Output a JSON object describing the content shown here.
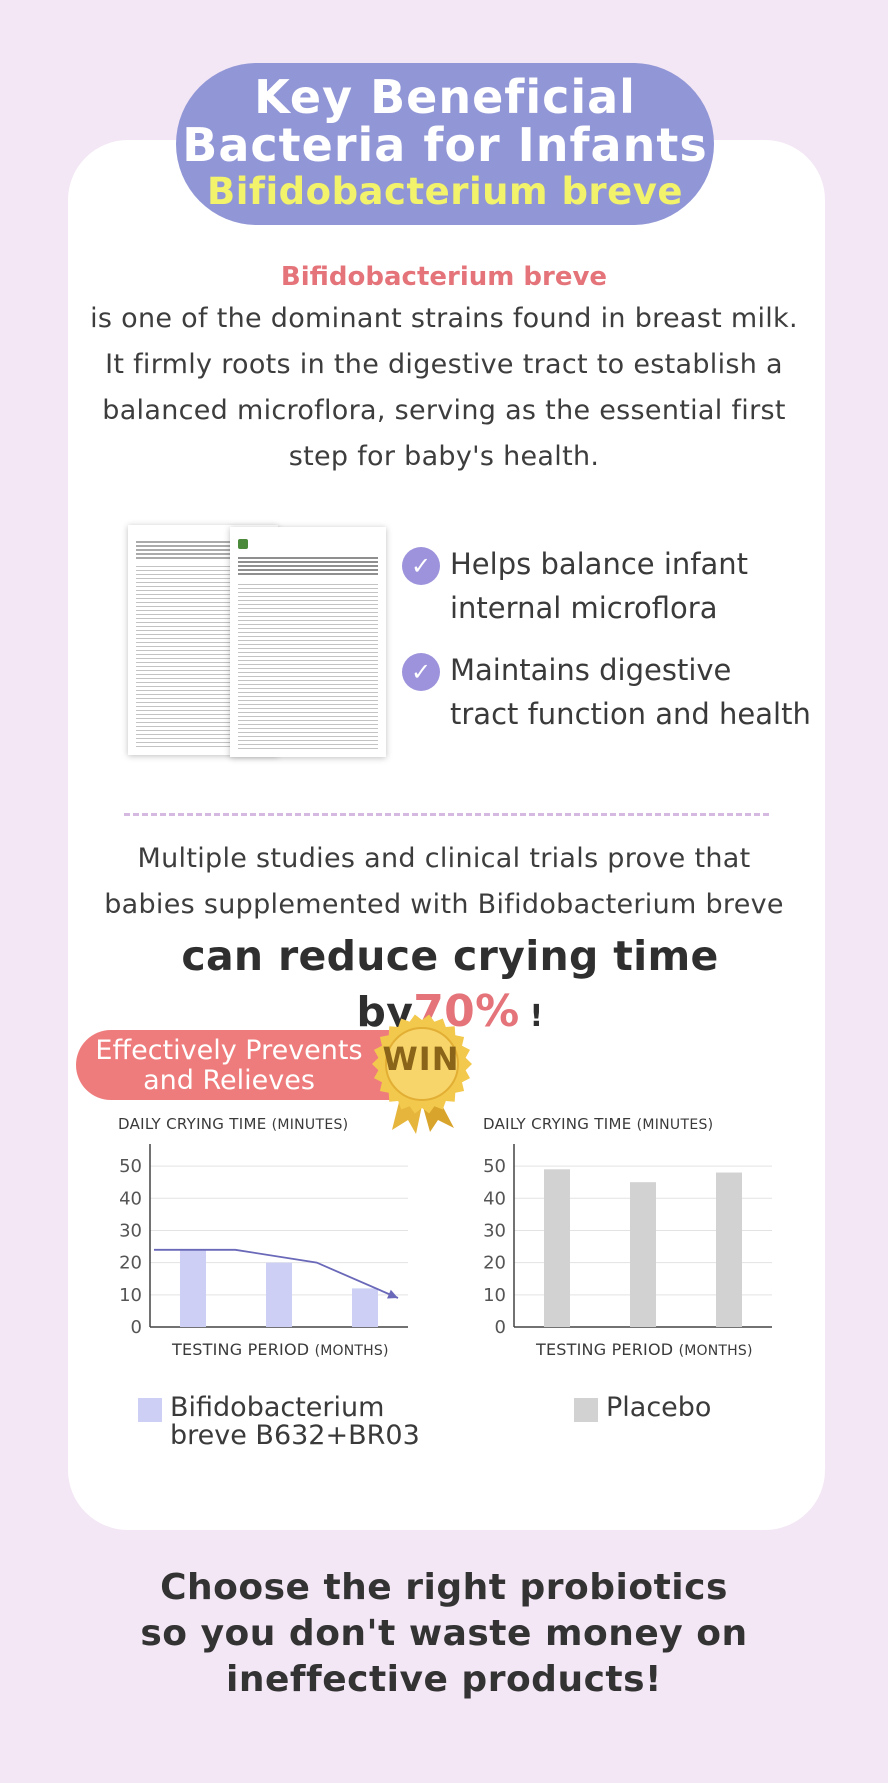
{
  "header": {
    "title_line1": "Key Beneficial",
    "title_line2": "Bacteria for Infants",
    "subtitle": "Bifidobacterium breve"
  },
  "intro": {
    "strain": "Bifidobacterium breve",
    "lines": [
      "is one of the dominant strains found in breast milk.",
      "It firmly roots in the digestive tract to establish a",
      "balanced microflora, serving as the essential first",
      "step for baby's health."
    ]
  },
  "benefits": [
    {
      "line1": "Helps balance infant",
      "line2": "internal microflora"
    },
    {
      "line1": "Maintains digestive",
      "line2": "tract function and health"
    }
  ],
  "icons": {
    "check": "check-circle-icon",
    "badge": "win-seal-icon"
  },
  "studies": {
    "lines": [
      "Multiple studies and clinical trials prove that",
      "babies supplemented with Bifidobacterium breve"
    ],
    "claim": "can reduce crying time by",
    "claim_value": "70%",
    "claim_end": "!"
  },
  "ribbon": {
    "line1": "Effectively Prevents",
    "line2": "and Relieves"
  },
  "badge": {
    "text": "WIN"
  },
  "colors": {
    "accent_purple": "#9197d6",
    "subtitle_yellow": "#f2f36a",
    "highlight_red": "#e4747a",
    "ribbon_red": "#ef7c7c",
    "bifido_bar": "#cdd0f4",
    "placebo_bar": "#d2d2d2",
    "trend_line": "#6a68b8",
    "page_bg": "#f3e6f5",
    "badge_gold": "#f2c94c"
  },
  "chart_data": [
    {
      "type": "bar",
      "title": "DAILY CRYING TIME",
      "title_unit": "(MINUTES)",
      "xlabel": "TESTING PERIOD",
      "xlabel_unit": "(MONTHS)",
      "yticks": [
        0,
        10,
        20,
        30,
        40,
        50
      ],
      "ylim": [
        0,
        55
      ],
      "grid": true,
      "series": [
        {
          "name": "Bifidobacterium breve B632+BR03",
          "values": [
            24,
            20,
            12
          ]
        }
      ],
      "trend": [
        24,
        24,
        20,
        9
      ]
    },
    {
      "type": "bar",
      "title": "DAILY CRYING TIME",
      "title_unit": "(MINUTES)",
      "xlabel": "TESTING PERIOD",
      "xlabel_unit": "(MONTHS)",
      "yticks": [
        0,
        10,
        20,
        30,
        40,
        50
      ],
      "ylim": [
        0,
        55
      ],
      "grid": true,
      "series": [
        {
          "name": "Placebo",
          "values": [
            49,
            45,
            48
          ]
        }
      ]
    }
  ],
  "legend": {
    "bifido_line1": "Bifidobacterium",
    "bifido_line2": "breve B632+BR03",
    "placebo": "Placebo"
  },
  "cta": {
    "lines": [
      "Choose the right probiotics",
      "so you don't waste money on",
      "ineffective products!"
    ]
  }
}
